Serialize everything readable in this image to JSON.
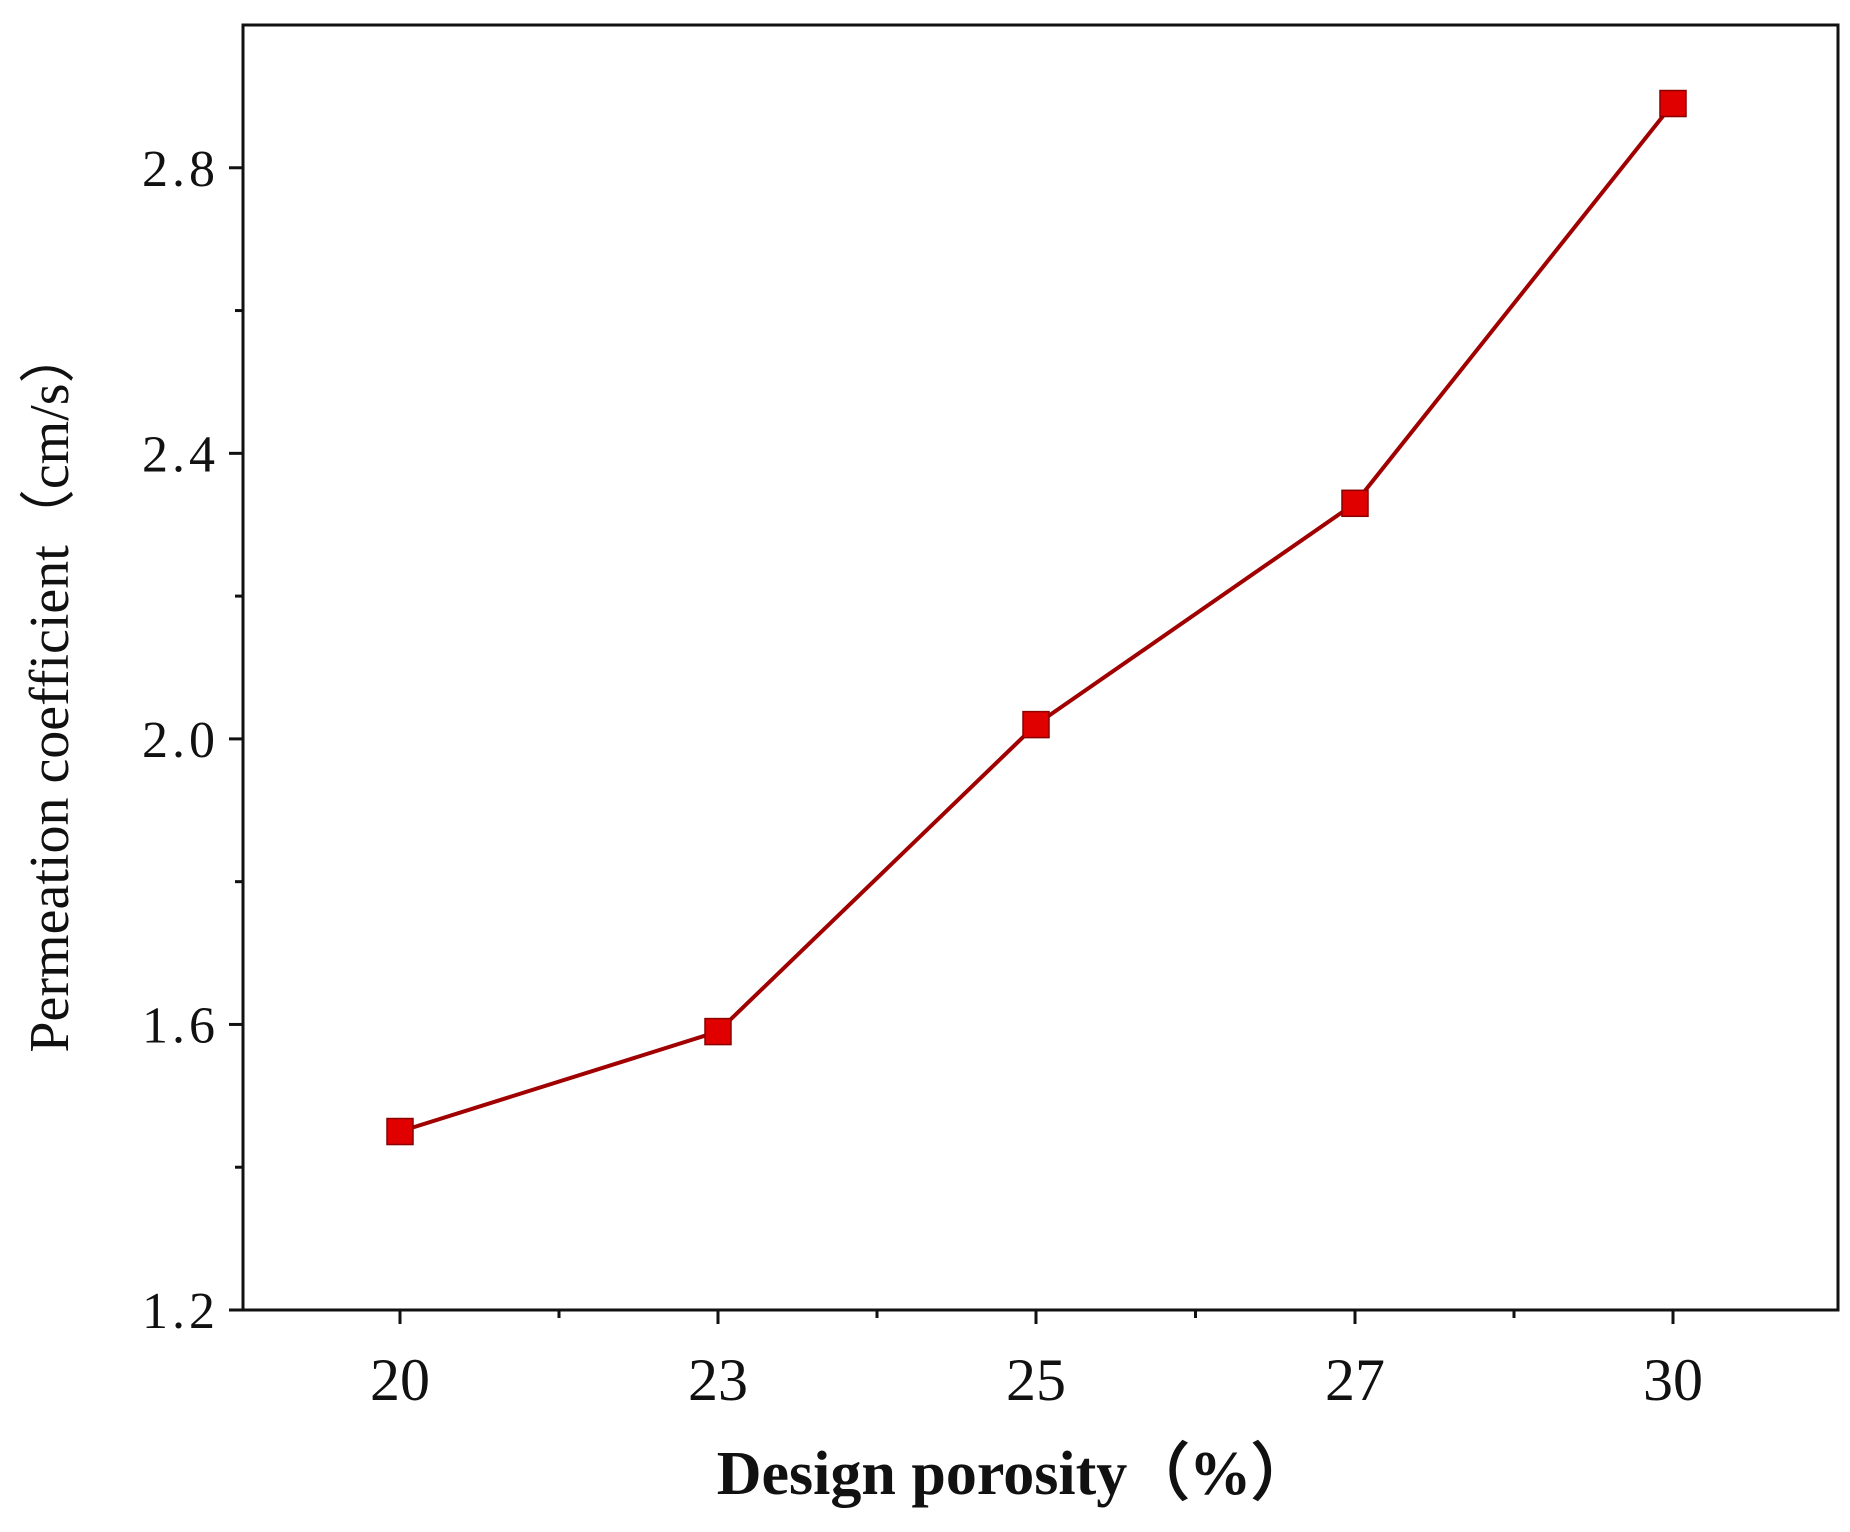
{
  "chart_data": {
    "type": "line",
    "title": "",
    "xlabel": "Design porosity（%）",
    "ylabel": "Permeation coefficient（cm/s）",
    "categories": [
      "20",
      "23",
      "25",
      "27",
      "30"
    ],
    "series": [
      {
        "name": "Permeation coefficient",
        "values": [
          1.45,
          1.59,
          2.02,
          2.33,
          2.89
        ],
        "color": "#a00000",
        "marker_color": "#e00000",
        "marker": "square"
      }
    ],
    "ylim": [
      1.2,
      3.0
    ],
    "yticks": [
      "1.2",
      "1.6",
      "2.0",
      "2.4",
      "2.8"
    ],
    "ytick_values": [
      1.2,
      1.6,
      2.0,
      2.4,
      2.8
    ],
    "yminor_values": [
      1.4,
      1.8,
      2.2,
      2.6
    ],
    "grid": false,
    "legend": "none"
  }
}
